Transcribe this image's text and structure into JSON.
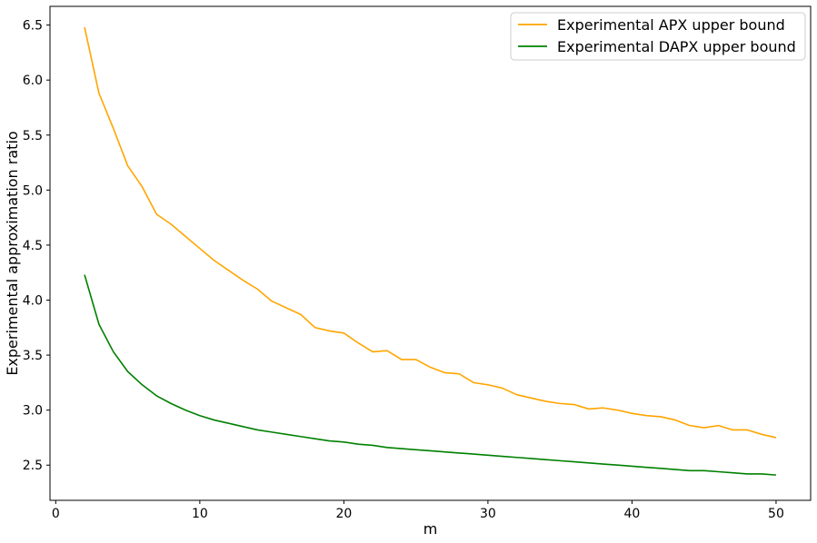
{
  "chart_data": {
    "type": "line",
    "xlabel": "m",
    "ylabel": "Experimental approximation ratio",
    "xlim": [
      -0.4,
      52.4
    ],
    "ylim": [
      2.18,
      6.67
    ],
    "xticks": [
      0,
      10,
      20,
      30,
      40,
      50
    ],
    "xtick_labels": [
      "0",
      "10",
      "20",
      "30",
      "40",
      "50"
    ],
    "yticks": [
      2.5,
      3.0,
      3.5,
      4.0,
      4.5,
      5.0,
      5.5,
      6.0,
      6.5
    ],
    "ytick_labels": [
      "2.5",
      "3.0",
      "3.5",
      "4.0",
      "4.5",
      "5.0",
      "5.5",
      "6.0",
      "6.5"
    ],
    "grid": false,
    "legend_position": "top-right",
    "x": [
      2,
      3,
      4,
      5,
      6,
      7,
      8,
      9,
      10,
      11,
      12,
      13,
      14,
      15,
      16,
      17,
      18,
      19,
      20,
      21,
      22,
      23,
      24,
      25,
      26,
      27,
      28,
      29,
      30,
      31,
      32,
      33,
      34,
      35,
      36,
      37,
      38,
      39,
      40,
      41,
      42,
      43,
      44,
      45,
      46,
      47,
      48,
      49,
      50
    ],
    "series": [
      {
        "name": "Experimental APX upper bound",
        "color": "#ffa500",
        "values": [
          6.48,
          5.88,
          5.56,
          5.22,
          5.03,
          4.78,
          4.69,
          4.58,
          4.47,
          4.36,
          4.27,
          4.18,
          4.1,
          3.99,
          3.93,
          3.87,
          3.75,
          3.72,
          3.7,
          3.61,
          3.53,
          3.54,
          3.46,
          3.46,
          3.39,
          3.34,
          3.33,
          3.25,
          3.23,
          3.2,
          3.14,
          3.11,
          3.08,
          3.06,
          3.05,
          3.01,
          3.02,
          3.0,
          2.97,
          2.95,
          2.94,
          2.91,
          2.86,
          2.84,
          2.86,
          2.82,
          2.82,
          2.78,
          2.75
        ]
      },
      {
        "name": "Experimental DAPX upper bound",
        "color": "#008000",
        "values": [
          4.23,
          3.78,
          3.53,
          3.35,
          3.23,
          3.13,
          3.06,
          3.0,
          2.95,
          2.91,
          2.88,
          2.85,
          2.82,
          2.8,
          2.78,
          2.76,
          2.74,
          2.72,
          2.71,
          2.69,
          2.68,
          2.66,
          2.65,
          2.64,
          2.63,
          2.62,
          2.61,
          2.6,
          2.59,
          2.58,
          2.57,
          2.56,
          2.55,
          2.54,
          2.53,
          2.52,
          2.51,
          2.5,
          2.49,
          2.48,
          2.47,
          2.46,
          2.45,
          2.45,
          2.44,
          2.43,
          2.42,
          2.42,
          2.41
        ]
      }
    ]
  }
}
